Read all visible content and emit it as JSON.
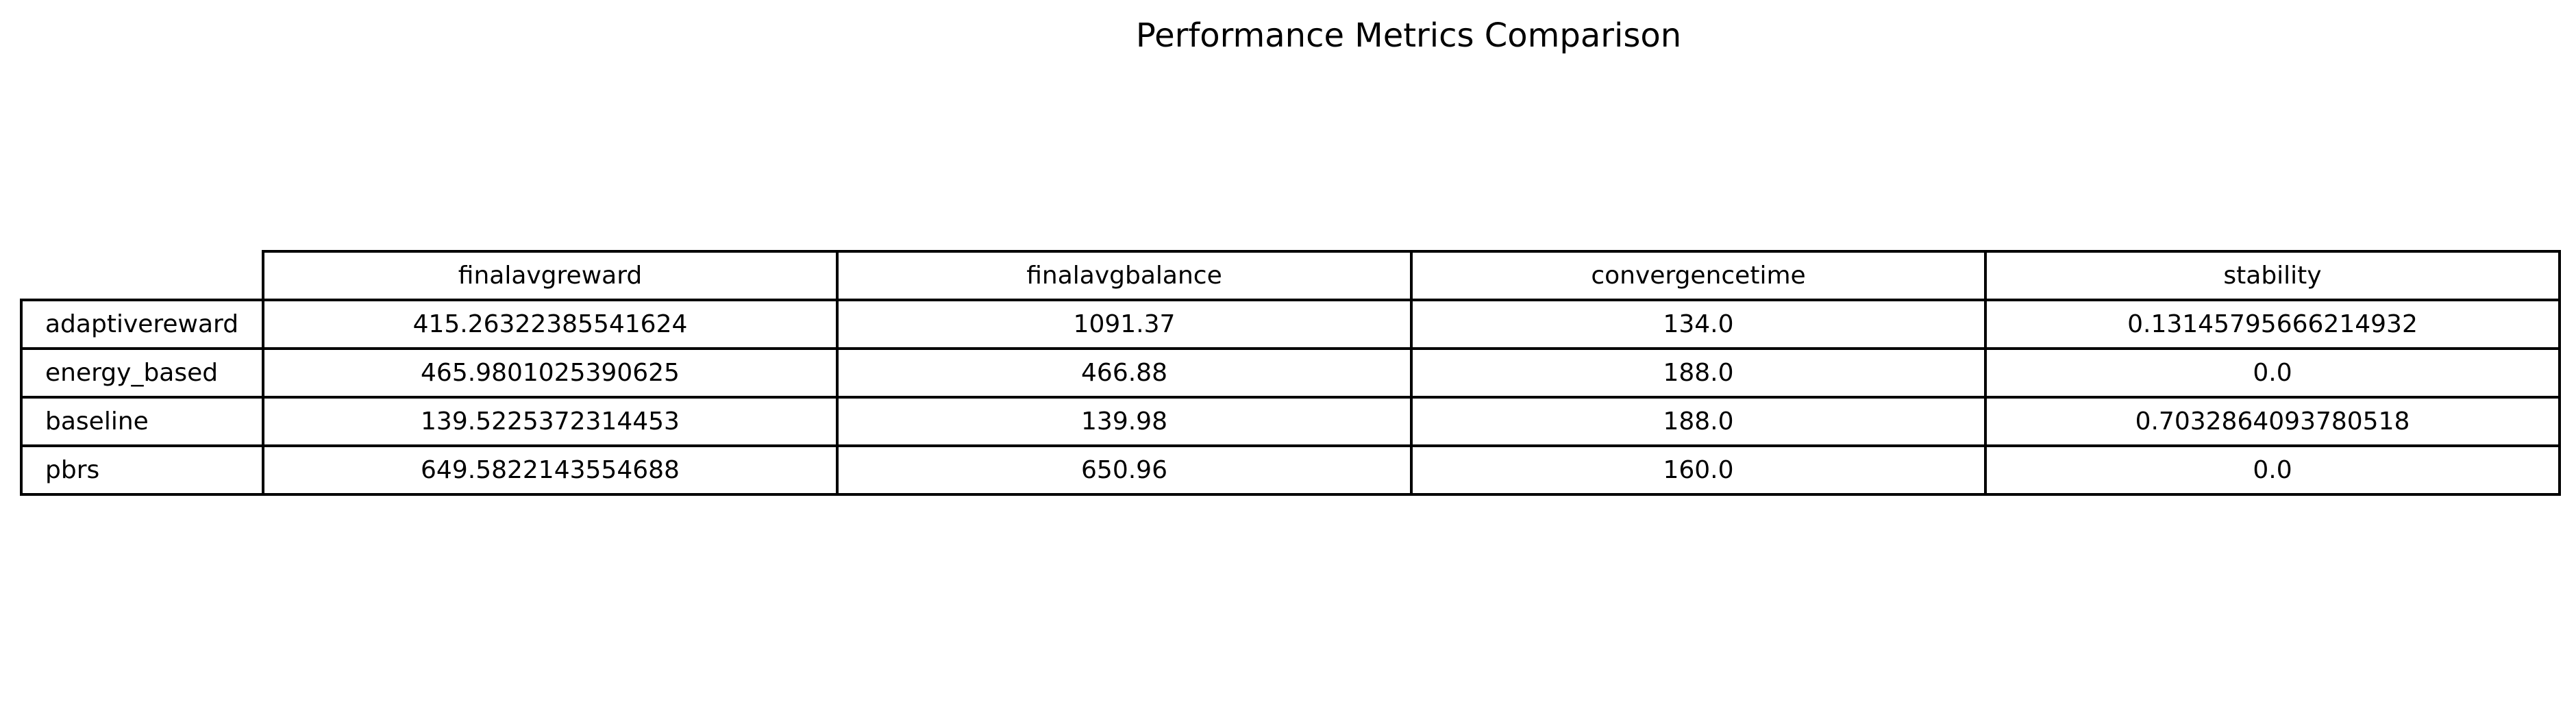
{
  "chart_data": {
    "type": "table",
    "title": "Performance Metrics Comparison",
    "columns": [
      "finalavgreward",
      "finalavgbalance",
      "convergencetime",
      "stability"
    ],
    "rows": [
      {
        "label": "adaptivereward",
        "cells": [
          "415.26322385541624",
          "1091.37",
          "134.0",
          "0.13145795666214932"
        ]
      },
      {
        "label": "energy_based",
        "cells": [
          "465.9801025390625",
          "466.88",
          "188.0",
          "0.0"
        ]
      },
      {
        "label": "baseline",
        "cells": [
          "139.5225372314453",
          "139.98",
          "188.0",
          "0.7032864093780518"
        ]
      },
      {
        "label": "pbrs",
        "cells": [
          "649.5822143554688",
          "650.96",
          "160.0",
          "0.0"
        ]
      }
    ]
  }
}
